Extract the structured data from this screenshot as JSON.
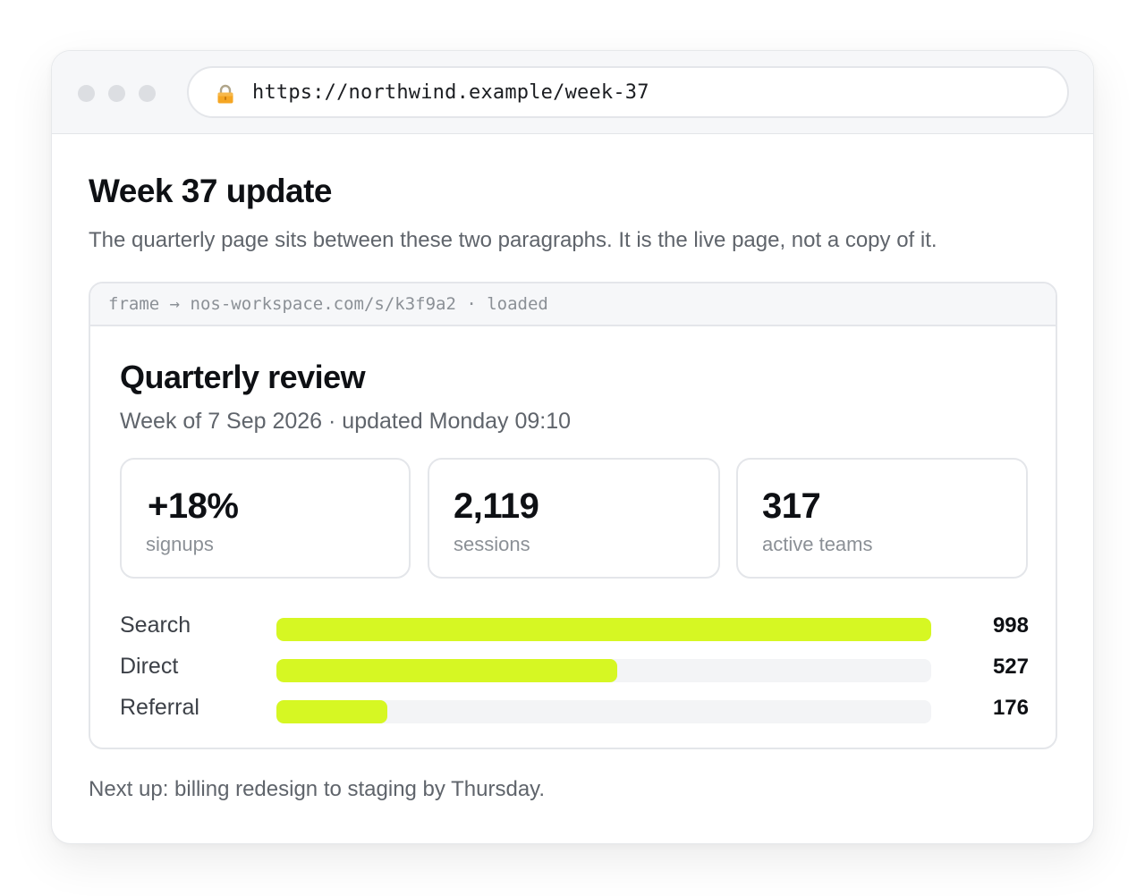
{
  "browser": {
    "url": "https://northwind.example/week-37",
    "icons": {
      "lock": "lock-icon"
    }
  },
  "page": {
    "title": "Week 37 update",
    "intro": "The quarterly page sits between these two paragraphs. It is the live page, not a copy of it.",
    "outro": "Next up: billing redesign to staging by Thursday."
  },
  "frame": {
    "bar_text": "frame → nos-workspace.com/s/k3f9a2 · loaded",
    "title": "Quarterly review",
    "subtitle": "Week of 7 Sep 2026 · updated Monday 09:10",
    "stats": [
      {
        "value": "+18%",
        "label": "signups"
      },
      {
        "value": "2,119",
        "label": "sessions"
      },
      {
        "value": "317",
        "label": "active teams"
      }
    ],
    "channels": [
      {
        "label": "Search",
        "value": "998",
        "fraction": 1.0
      },
      {
        "label": "Direct",
        "value": "527",
        "fraction": 0.52
      },
      {
        "label": "Referral",
        "value": "176",
        "fraction": 0.17
      }
    ],
    "accent_color": "#d6f723"
  }
}
